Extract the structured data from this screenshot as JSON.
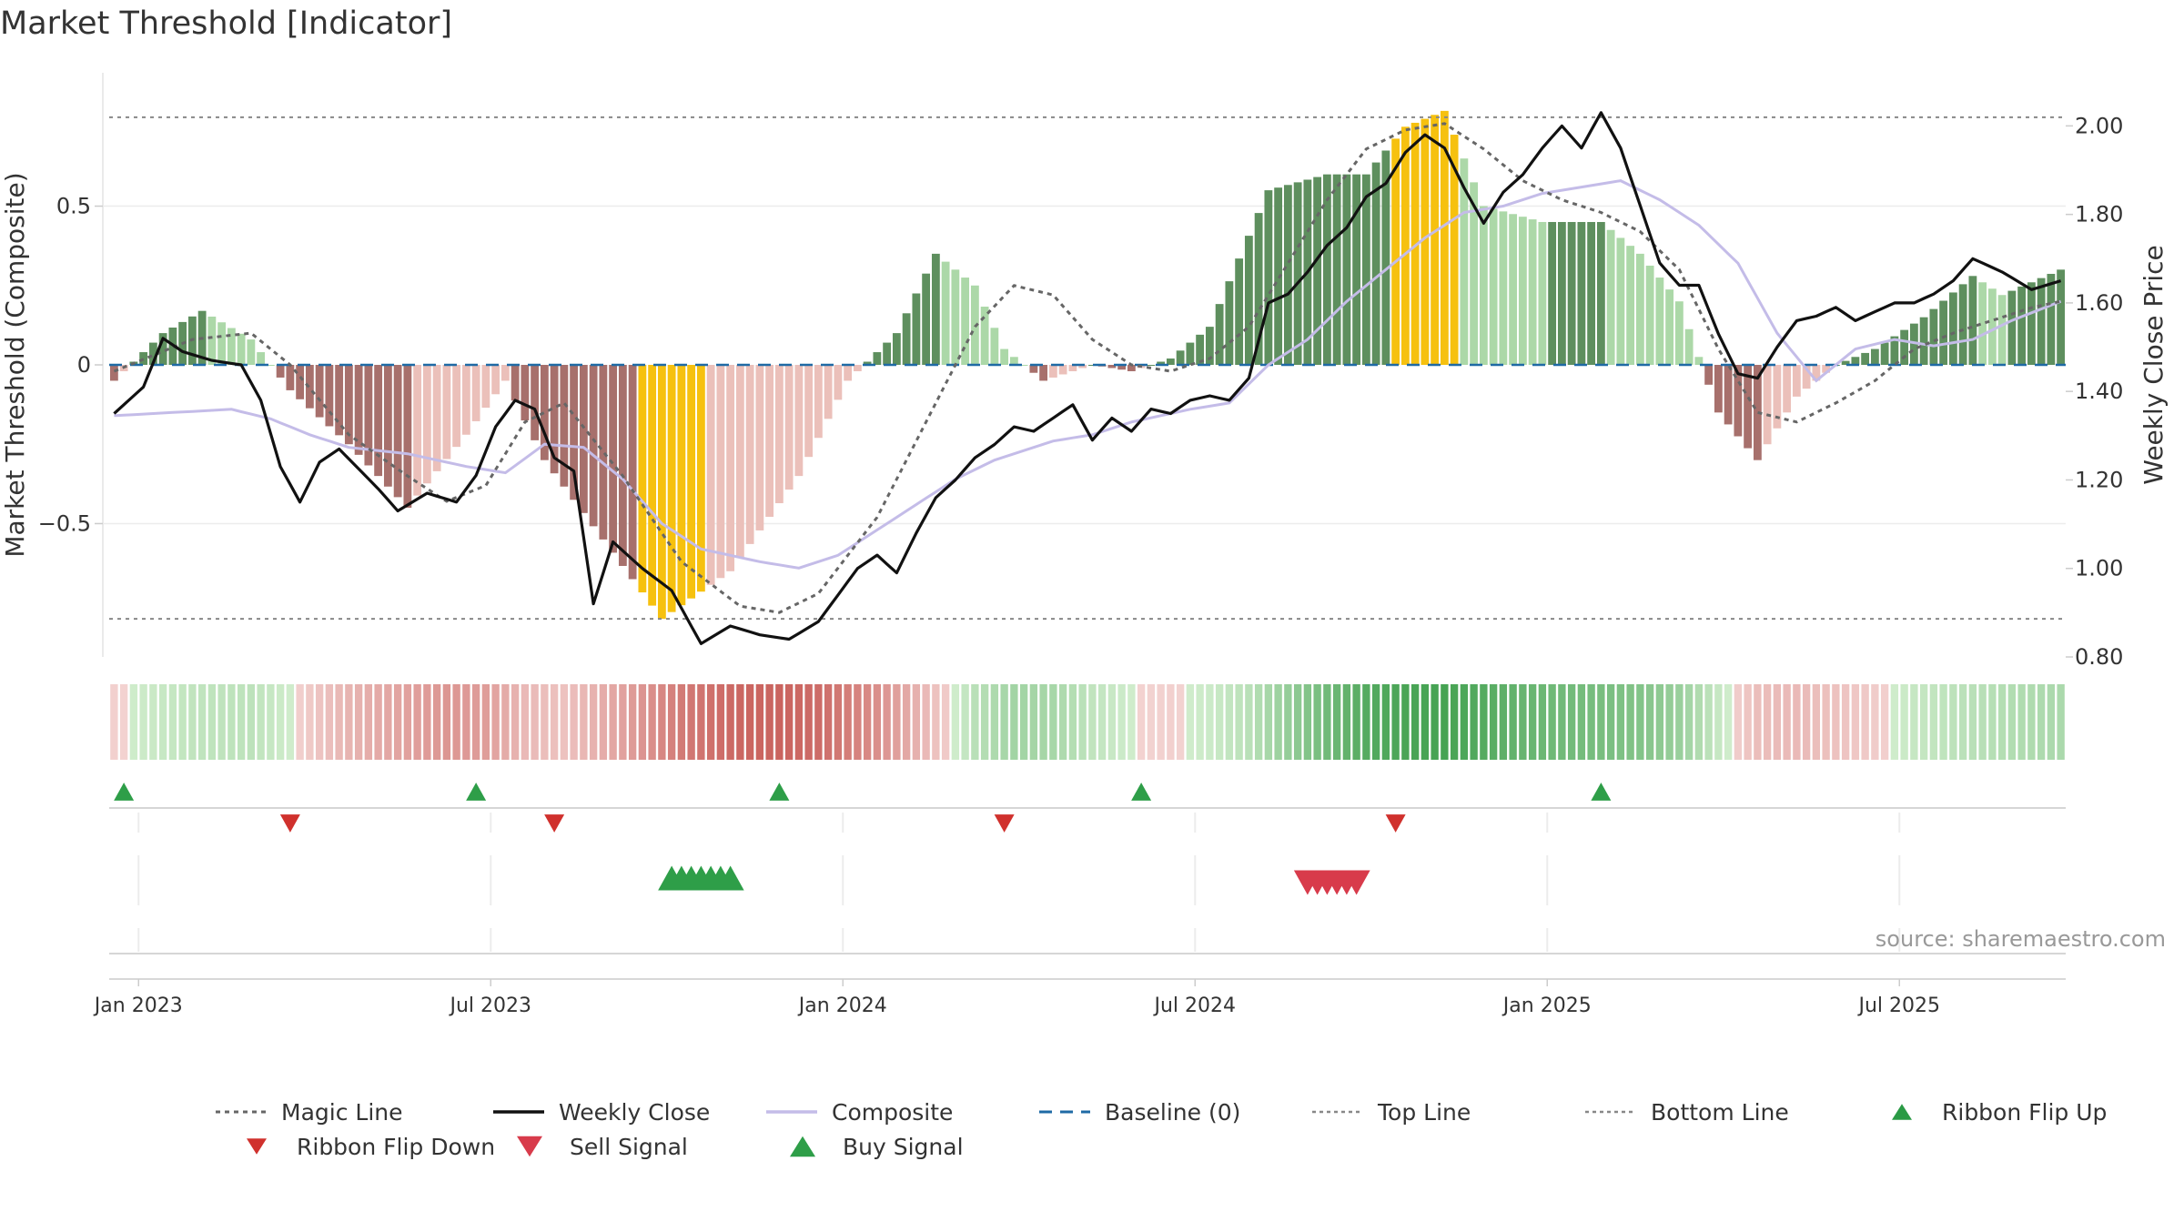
{
  "page": {
    "title": "Market Threshold [Indicator]",
    "source": "source: sharemaestro.com"
  },
  "colors": {
    "bar_green_dark": "#5e8f5e",
    "bar_green_light": "#acd8a8",
    "bar_red_dark": "#a7706c",
    "bar_red_light": "#ebc0ba",
    "bar_extreme": "#f6c10f",
    "weekly_close": "#111111",
    "composite": "#c4bce8",
    "magic_line": "#666666",
    "baseline": "#1f6aa5",
    "threshold_lines": "#888888",
    "buy": "#2e9e48",
    "sell": "#d83b4b",
    "flip_down": "#d0312d"
  },
  "legend": [
    {
      "label": "Magic Line",
      "icon": "dotted-line"
    },
    {
      "label": "Weekly Close",
      "icon": "solid-line"
    },
    {
      "label": "Composite",
      "icon": "lavender-line"
    },
    {
      "label": "Baseline (0)",
      "icon": "dashed-line"
    },
    {
      "label": "Top Line",
      "icon": "dotted-grey-line"
    },
    {
      "label": "Bottom Line",
      "icon": "dotted-grey-line"
    },
    {
      "label": "Ribbon Flip Up",
      "icon": "triangle-up"
    },
    {
      "label": "Ribbon Flip Down",
      "icon": "triangle-down"
    },
    {
      "label": "Sell Signal",
      "icon": "triangle-down"
    },
    {
      "label": "Buy Signal",
      "icon": "triangle-up"
    }
  ],
  "chart_data": {
    "type": "bar",
    "title": "Market Threshold [Indicator]",
    "ylabel_left": "Market Threshold (Composite)",
    "ylabel_right": "Weekly Close Price",
    "ylim_left": [
      -0.92,
      0.92
    ],
    "ylim_right": [
      0.8,
      2.12
    ],
    "yticks_left": [
      "0.5",
      "0",
      "−0.5"
    ],
    "yticks_right": [
      "2.00",
      "1.80",
      "1.60",
      "1.40",
      "1.20",
      "1.00",
      "0.80"
    ],
    "x_tick_labels": [
      "Jan 2023",
      "Jul 2023",
      "Jan 2024",
      "Jul 2024",
      "Jan 2025",
      "Jul 2025"
    ],
    "x_tick_weeks": [
      2.5,
      38.5,
      74.5,
      110.5,
      146.5,
      182.5
    ],
    "top_line": 0.78,
    "bottom_line": -0.8,
    "baseline": 0,
    "grid": true,
    "legend_position": "bottom",
    "week_count": 200,
    "series": [
      {
        "name": "Composite",
        "anchors": [
          [
            0,
            -0.05
          ],
          [
            5,
            0.1
          ],
          [
            9,
            0.17
          ],
          [
            14,
            0.08
          ],
          [
            18,
            -0.08
          ],
          [
            24,
            -0.25
          ],
          [
            30,
            -0.45
          ],
          [
            36,
            -0.22
          ],
          [
            40,
            -0.05
          ],
          [
            44,
            -0.3
          ],
          [
            50,
            -0.55
          ],
          [
            56,
            -0.8
          ],
          [
            63,
            -0.65
          ],
          [
            70,
            -0.35
          ],
          [
            75,
            -0.05
          ],
          [
            80,
            0.1
          ],
          [
            84,
            0.35
          ],
          [
            88,
            0.25
          ],
          [
            91,
            0.05
          ],
          [
            95,
            -0.05
          ],
          [
            100,
            0.0
          ],
          [
            104,
            -0.02
          ],
          [
            108,
            0.02
          ],
          [
            112,
            0.12
          ],
          [
            118,
            0.55
          ],
          [
            124,
            0.6
          ],
          [
            128,
            0.6
          ],
          [
            132,
            0.75
          ],
          [
            136,
            0.8
          ],
          [
            140,
            0.5
          ],
          [
            146,
            0.45
          ],
          [
            152,
            0.45
          ],
          [
            156,
            0.35
          ],
          [
            160,
            0.2
          ],
          [
            164,
            -0.15
          ],
          [
            168,
            -0.3
          ],
          [
            172,
            -0.1
          ],
          [
            176,
            0.0
          ],
          [
            180,
            0.05
          ],
          [
            185,
            0.15
          ],
          [
            190,
            0.28
          ],
          [
            193,
            0.22
          ],
          [
            199,
            0.3
          ]
        ]
      },
      {
        "name": "Weekly Close",
        "anchors": [
          [
            0,
            1.35
          ],
          [
            3,
            1.41
          ],
          [
            5,
            1.52
          ],
          [
            7,
            1.49
          ],
          [
            10,
            1.47
          ],
          [
            13,
            1.46
          ],
          [
            15,
            1.38
          ],
          [
            17,
            1.23
          ],
          [
            19,
            1.15
          ],
          [
            21,
            1.24
          ],
          [
            23,
            1.27
          ],
          [
            27,
            1.18
          ],
          [
            29,
            1.13
          ],
          [
            32,
            1.17
          ],
          [
            35,
            1.15
          ],
          [
            37,
            1.21
          ],
          [
            39,
            1.32
          ],
          [
            41,
            1.38
          ],
          [
            43,
            1.36
          ],
          [
            45,
            1.25
          ],
          [
            47,
            1.22
          ],
          [
            49,
            0.92
          ],
          [
            51,
            1.06
          ],
          [
            54,
            1.0
          ],
          [
            57,
            0.95
          ],
          [
            60,
            0.83
          ],
          [
            63,
            0.87
          ],
          [
            66,
            0.85
          ],
          [
            69,
            0.84
          ],
          [
            72,
            0.88
          ],
          [
            74,
            0.94
          ],
          [
            76,
            1.0
          ],
          [
            78,
            1.03
          ],
          [
            80,
            0.99
          ],
          [
            82,
            1.08
          ],
          [
            84,
            1.16
          ],
          [
            86,
            1.2
          ],
          [
            88,
            1.25
          ],
          [
            90,
            1.28
          ],
          [
            92,
            1.32
          ],
          [
            94,
            1.31
          ],
          [
            96,
            1.34
          ],
          [
            98,
            1.37
          ],
          [
            100,
            1.29
          ],
          [
            102,
            1.34
          ],
          [
            104,
            1.31
          ],
          [
            106,
            1.36
          ],
          [
            108,
            1.35
          ],
          [
            110,
            1.38
          ],
          [
            112,
            1.39
          ],
          [
            114,
            1.38
          ],
          [
            116,
            1.43
          ],
          [
            118,
            1.6
          ],
          [
            120,
            1.62
          ],
          [
            122,
            1.67
          ],
          [
            124,
            1.73
          ],
          [
            126,
            1.77
          ],
          [
            128,
            1.84
          ],
          [
            130,
            1.87
          ],
          [
            132,
            1.94
          ],
          [
            134,
            1.98
          ],
          [
            136,
            1.95
          ],
          [
            138,
            1.86
          ],
          [
            140,
            1.78
          ],
          [
            142,
            1.85
          ],
          [
            144,
            1.89
          ],
          [
            146,
            1.95
          ],
          [
            148,
            2.0
          ],
          [
            150,
            1.95
          ],
          [
            152,
            2.03
          ],
          [
            154,
            1.95
          ],
          [
            156,
            1.82
          ],
          [
            158,
            1.69
          ],
          [
            160,
            1.64
          ],
          [
            162,
            1.64
          ],
          [
            164,
            1.53
          ],
          [
            166,
            1.44
          ],
          [
            168,
            1.43
          ],
          [
            170,
            1.5
          ],
          [
            172,
            1.56
          ],
          [
            174,
            1.57
          ],
          [
            176,
            1.59
          ],
          [
            178,
            1.56
          ],
          [
            180,
            1.58
          ],
          [
            182,
            1.6
          ],
          [
            184,
            1.6
          ],
          [
            186,
            1.62
          ],
          [
            188,
            1.65
          ],
          [
            190,
            1.7
          ],
          [
            193,
            1.67
          ],
          [
            196,
            1.63
          ],
          [
            199,
            1.65
          ]
        ]
      },
      {
        "name": "Magic Line",
        "anchors": [
          [
            0,
            -0.02
          ],
          [
            8,
            0.08
          ],
          [
            14,
            0.1
          ],
          [
            18,
            0.0
          ],
          [
            24,
            -0.22
          ],
          [
            30,
            -0.35
          ],
          [
            34,
            -0.43
          ],
          [
            38,
            -0.38
          ],
          [
            42,
            -0.18
          ],
          [
            46,
            -0.12
          ],
          [
            52,
            -0.35
          ],
          [
            58,
            -0.62
          ],
          [
            64,
            -0.76
          ],
          [
            68,
            -0.78
          ],
          [
            72,
            -0.72
          ],
          [
            78,
            -0.48
          ],
          [
            84,
            -0.12
          ],
          [
            88,
            0.12
          ],
          [
            92,
            0.25
          ],
          [
            96,
            0.22
          ],
          [
            100,
            0.08
          ],
          [
            104,
            0.0
          ],
          [
            108,
            -0.02
          ],
          [
            112,
            0.02
          ],
          [
            116,
            0.12
          ],
          [
            120,
            0.32
          ],
          [
            124,
            0.52
          ],
          [
            128,
            0.68
          ],
          [
            132,
            0.74
          ],
          [
            136,
            0.76
          ],
          [
            140,
            0.68
          ],
          [
            144,
            0.58
          ],
          [
            148,
            0.52
          ],
          [
            152,
            0.48
          ],
          [
            156,
            0.42
          ],
          [
            160,
            0.3
          ],
          [
            164,
            0.05
          ],
          [
            168,
            -0.15
          ],
          [
            172,
            -0.18
          ],
          [
            176,
            -0.12
          ],
          [
            180,
            -0.05
          ],
          [
            184,
            0.05
          ],
          [
            188,
            0.1
          ],
          [
            192,
            0.14
          ],
          [
            196,
            0.18
          ],
          [
            199,
            0.2
          ]
        ]
      },
      {
        "name": "Composite (smoothed)",
        "anchors": [
          [
            0,
            -0.16
          ],
          [
            12,
            -0.14
          ],
          [
            16,
            -0.17
          ],
          [
            20,
            -0.22
          ],
          [
            24,
            -0.26
          ],
          [
            30,
            -0.28
          ],
          [
            36,
            -0.32
          ],
          [
            40,
            -0.34
          ],
          [
            44,
            -0.25
          ],
          [
            48,
            -0.26
          ],
          [
            52,
            -0.36
          ],
          [
            56,
            -0.5
          ],
          [
            60,
            -0.58
          ],
          [
            66,
            -0.62
          ],
          [
            70,
            -0.64
          ],
          [
            74,
            -0.6
          ],
          [
            78,
            -0.52
          ],
          [
            82,
            -0.44
          ],
          [
            86,
            -0.36
          ],
          [
            90,
            -0.3
          ],
          [
            96,
            -0.24
          ],
          [
            100,
            -0.22
          ],
          [
            104,
            -0.18
          ],
          [
            110,
            -0.14
          ],
          [
            114,
            -0.12
          ],
          [
            118,
            0.0
          ],
          [
            122,
            0.08
          ],
          [
            126,
            0.2
          ],
          [
            130,
            0.3
          ],
          [
            134,
            0.4
          ],
          [
            138,
            0.48
          ],
          [
            142,
            0.5
          ],
          [
            146,
            0.54
          ],
          [
            150,
            0.56
          ],
          [
            154,
            0.58
          ],
          [
            158,
            0.52
          ],
          [
            162,
            0.44
          ],
          [
            166,
            0.32
          ],
          [
            170,
            0.1
          ],
          [
            174,
            -0.05
          ],
          [
            178,
            0.05
          ],
          [
            182,
            0.08
          ],
          [
            186,
            0.06
          ],
          [
            190,
            0.08
          ],
          [
            194,
            0.14
          ],
          [
            199,
            0.2
          ]
        ]
      }
    ],
    "ribbon_flip_up_weeks": [
      1,
      37,
      68,
      105,
      152
    ],
    "ribbon_flip_down_weeks": [
      18,
      45,
      91,
      131
    ],
    "buy_signal_weeks": [
      57,
      58,
      59,
      60,
      61,
      62,
      63
    ],
    "sell_signal_weeks": [
      122,
      123,
      124,
      125,
      126,
      127
    ]
  }
}
